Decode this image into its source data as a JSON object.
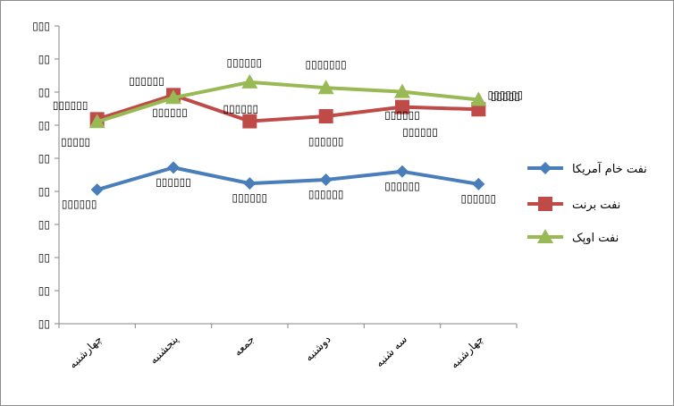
{
  "chart_data": {
    "type": "line",
    "title": "",
    "xlabel": "",
    "ylabel": "",
    "ylim": [
      40,
      130
    ],
    "yticks": [
      40,
      50,
      60,
      70,
      80,
      90,
      100,
      110,
      120,
      130
    ],
    "ytick_labels": [
      "▯▯",
      "▯▯",
      "▯▯",
      "▯▯",
      "▯▯",
      "▯▯",
      "▯▯",
      "▯▯",
      "▯▯",
      "▯▯▯"
    ],
    "categories": [
      "چهارشنبه",
      "پنجشنبه",
      "جمعه",
      "دوشنبه",
      "سه شنبه",
      "چهارشنبه"
    ],
    "grid": false,
    "legend_position": "right",
    "series": [
      {
        "name": "نفت خام آمریکا",
        "color": "#4a7ebb",
        "marker": "diamond",
        "values": [
          80.5,
          87.2,
          82.4,
          83.5,
          86.0,
          82.2
        ],
        "labels": [
          "▯▯▯▯▯▯",
          "▯▯▯▯▯▯",
          "▯▯▯▯▯▯",
          "▯▯▯▯▯▯",
          "▯▯▯▯▯▯",
          "▯▯▯▯▯▯"
        ]
      },
      {
        "name": "نفت برنت",
        "color": "#be4b48",
        "marker": "square",
        "values": [
          101.8,
          109.1,
          101.2,
          102.7,
          105.5,
          104.8
        ],
        "labels": [
          "▯▯▯▯▯▯",
          "▯▯▯▯▯▯",
          "▯▯▯▯▯▯",
          "▯▯▯▯▯▯",
          "▯▯▯▯▯▯",
          "▯▯▯▯▯▯"
        ]
      },
      {
        "name": "نفت اوپک",
        "color": "#98b954",
        "marker": "triangle",
        "values": [
          101.0,
          108.3,
          113.0,
          111.3,
          110.1,
          107.7
        ],
        "labels": [
          "▯▯▯▯▯",
          "▯▯▯▯▯▯",
          "▯▯▯▯▯▯",
          "▯▯▯▯▯▯▯",
          "▯▯▯▯▯▯",
          "▯▯▯▯▯"
        ]
      }
    ]
  }
}
